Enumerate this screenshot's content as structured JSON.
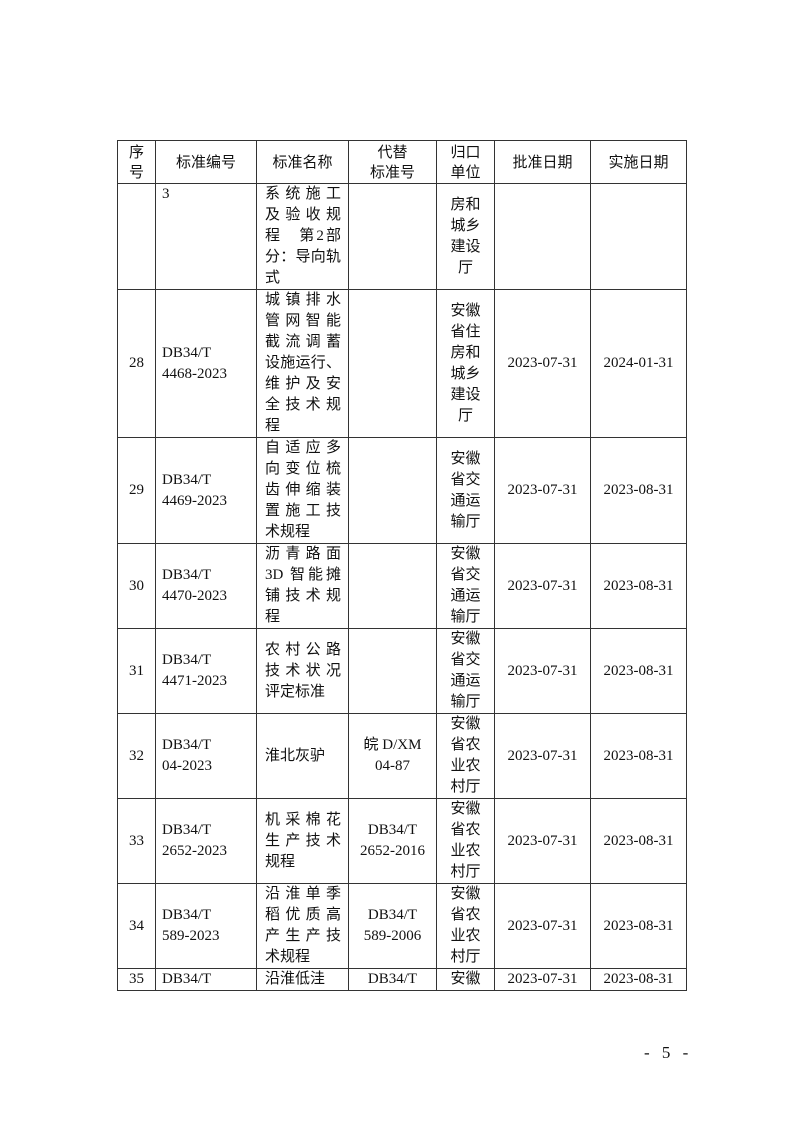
{
  "headers": [
    [
      "序",
      "号"
    ],
    [
      "标准编号"
    ],
    [
      "标准名称"
    ],
    [
      "代替",
      "标准号"
    ],
    [
      "归口",
      "单位"
    ],
    [
      "批准日期"
    ],
    [
      "实施日期"
    ]
  ],
  "rows": [
    {
      "no": "",
      "code": [
        "3"
      ],
      "name": [
        "系统施工",
        "及验收规",
        "程　第2部",
        "分：导向轨",
        "式"
      ],
      "replace": [],
      "unit": [
        "房和",
        "城乡",
        "建设",
        "厅"
      ],
      "approve": "",
      "implement": ""
    },
    {
      "no": "28",
      "code": [
        "DB34/T",
        "4468-2023"
      ],
      "name": [
        "城镇排水",
        "管网智能",
        "截流调蓄",
        "设施运行、",
        "维护及安",
        "全技术规",
        "程"
      ],
      "replace": [],
      "unit": [
        "安徽",
        "省住",
        "房和",
        "城乡",
        "建设",
        "厅"
      ],
      "approve": "2023-07-31",
      "implement": "2024-01-31"
    },
    {
      "no": "29",
      "code": [
        "DB34/T",
        "4469-2023"
      ],
      "name": [
        "自适应多",
        "向变位梳",
        "齿伸缩装",
        "置施工技",
        "术规程"
      ],
      "replace": [],
      "unit": [
        "安徽",
        "省交",
        "通运",
        "输厅"
      ],
      "approve": "2023-07-31",
      "implement": "2023-08-31"
    },
    {
      "no": "30",
      "code": [
        "DB34/T",
        "4470-2023"
      ],
      "name": [
        "沥青路面",
        "3D 智能摊",
        "铺技术规",
        "程"
      ],
      "replace": [],
      "unit": [
        "安徽",
        "省交",
        "通运",
        "输厅"
      ],
      "approve": "2023-07-31",
      "implement": "2023-08-31"
    },
    {
      "no": "31",
      "code": [
        "DB34/T",
        "4471-2023"
      ],
      "name": [
        "农村公路",
        "技术状况",
        "评定标准"
      ],
      "replace": [],
      "unit": [
        "安徽",
        "省交",
        "通运",
        "输厅"
      ],
      "approve": "2023-07-31",
      "implement": "2023-08-31"
    },
    {
      "no": "32",
      "code": [
        "DB34/T",
        "04-2023"
      ],
      "name": [
        "淮北灰驴"
      ],
      "replace": [
        "皖 D/XM",
        "04-87"
      ],
      "unit": [
        "安徽",
        "省农",
        "业农",
        "村厅"
      ],
      "approve": "2023-07-31",
      "implement": "2023-08-31"
    },
    {
      "no": "33",
      "code": [
        "DB34/T",
        "2652-2023"
      ],
      "name": [
        "机采棉花",
        "生产技术",
        "规程"
      ],
      "replace": [
        "DB34/T",
        "2652-2016"
      ],
      "unit": [
        "安徽",
        "省农",
        "业农",
        "村厅"
      ],
      "approve": "2023-07-31",
      "implement": "2023-08-31"
    },
    {
      "no": "34",
      "code": [
        "DB34/T",
        "589-2023"
      ],
      "name": [
        "沿淮单季",
        "稻优质高",
        "产生产技",
        "术规程"
      ],
      "replace": [
        "DB34/T",
        "589-2006"
      ],
      "unit": [
        "安徽",
        "省农",
        "业农",
        "村厅"
      ],
      "approve": "2023-07-31",
      "implement": "2023-08-31"
    },
    {
      "no": "35",
      "code": [
        "DB34/T"
      ],
      "name": [
        "沿淮低洼"
      ],
      "replace": [
        "DB34/T"
      ],
      "unit": [
        "安徽"
      ],
      "approve": "2023-07-31",
      "implement": "2023-08-31"
    }
  ],
  "page_number": "- 5 -"
}
